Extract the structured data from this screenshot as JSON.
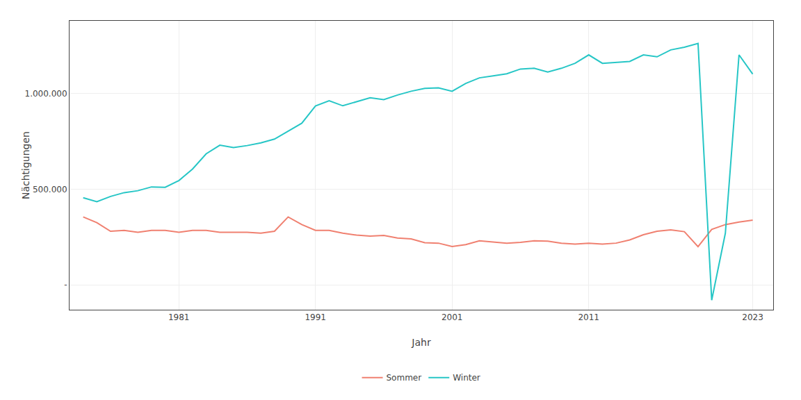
{
  "chart_data": {
    "type": "line",
    "x": [
      1974,
      1975,
      1976,
      1977,
      1978,
      1979,
      1980,
      1981,
      1982,
      1983,
      1984,
      1985,
      1986,
      1987,
      1988,
      1989,
      1990,
      1991,
      1992,
      1993,
      1994,
      1995,
      1996,
      1997,
      1998,
      1999,
      2000,
      2001,
      2002,
      2003,
      2004,
      2005,
      2006,
      2007,
      2008,
      2009,
      2010,
      2011,
      2012,
      2013,
      2014,
      2015,
      2016,
      2017,
      2018,
      2019,
      2020,
      2021,
      2022,
      2023
    ],
    "series": [
      {
        "name": "Sommer",
        "color": "#F08070",
        "values": [
          355000,
          325000,
          280000,
          285000,
          275000,
          285000,
          285000,
          275000,
          285000,
          285000,
          275000,
          275000,
          275000,
          270000,
          280000,
          355000,
          315000,
          285000,
          285000,
          270000,
          260000,
          255000,
          258000,
          245000,
          240000,
          220000,
          218000,
          200000,
          210000,
          230000,
          225000,
          218000,
          222000,
          230000,
          228000,
          218000,
          213000,
          218000,
          213000,
          218000,
          235000,
          262000,
          280000,
          287000,
          278000,
          200000,
          290000,
          315000,
          328000,
          338000
        ]
      },
      {
        "name": "Winter",
        "color": "#26C6C6",
        "values": [
          455000,
          435000,
          462000,
          482000,
          492000,
          512000,
          510000,
          545000,
          605000,
          685000,
          730000,
          718000,
          728000,
          742000,
          762000,
          805000,
          845000,
          935000,
          962000,
          936000,
          957000,
          978000,
          968000,
          992000,
          1012000,
          1027000,
          1030000,
          1012000,
          1053000,
          1082000,
          1092000,
          1103000,
          1128000,
          1132000,
          1112000,
          1132000,
          1158000,
          1202000,
          1158000,
          1162000,
          1168000,
          1202000,
          1192000,
          1228000,
          1242000,
          1262000,
          -80000,
          270000,
          1202000,
          1102000
        ]
      }
    ],
    "xlabel": "Jahr",
    "ylabel": "Nächtigungen",
    "xlim": [
      1973,
      2024.5
    ],
    "xticks": [
      1981,
      1991,
      2001,
      2011,
      2023
    ],
    "ylim": [
      -130000,
      1380000
    ],
    "yticks": [
      {
        "value": 0,
        "label": "-"
      },
      {
        "value": 500000,
        "label": "500.000"
      },
      {
        "value": 1000000,
        "label": "1.000.000"
      }
    ],
    "grid": true,
    "legend": "bottom"
  }
}
